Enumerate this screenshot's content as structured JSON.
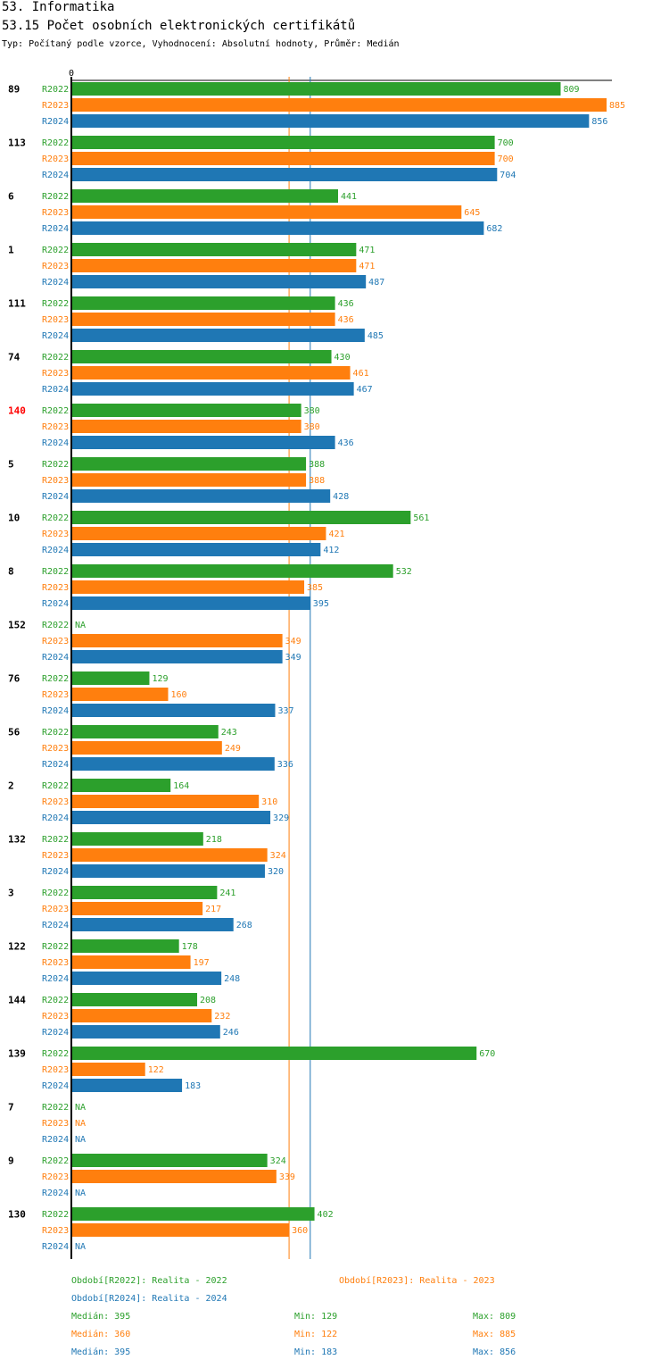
{
  "header": {
    "section_title": "53. Informatika",
    "chart_title": "53.15 Počet osobních elektronických certifikátů",
    "subtitle": "Typ: Počítaný podle vzorce, Vyhodnocení: Absolutní hodnoty, Průměr: Medián"
  },
  "colors": {
    "R2022": "#2ca02c",
    "R2023": "#ff7f0e",
    "R2024": "#1f77b4",
    "highlight": "#ff0000"
  },
  "chart_data": {
    "type": "bar",
    "orientation": "horizontal",
    "title": "53.15 Počet osobních elektronických certifikátů",
    "axis_zero_label": "0",
    "xlim": [
      0,
      885
    ],
    "na_label": "NA",
    "highlight_category": "140",
    "categories": [
      "89",
      "113",
      "6",
      "1",
      "111",
      "74",
      "140",
      "5",
      "10",
      "8",
      "152",
      "76",
      "56",
      "2",
      "132",
      "3",
      "122",
      "144",
      "139",
      "7",
      "9",
      "130"
    ],
    "series": [
      {
        "name": "R2022",
        "values": [
          809,
          700,
          441,
          471,
          436,
          430,
          380,
          388,
          561,
          532,
          null,
          129,
          243,
          164,
          218,
          241,
          178,
          208,
          670,
          null,
          324,
          402
        ]
      },
      {
        "name": "R2023",
        "values": [
          885,
          700,
          645,
          471,
          436,
          461,
          380,
          388,
          421,
          385,
          349,
          160,
          249,
          310,
          324,
          217,
          197,
          232,
          122,
          null,
          339,
          360
        ]
      },
      {
        "name": "R2024",
        "values": [
          856,
          704,
          682,
          487,
          485,
          467,
          436,
          428,
          412,
          395,
          349,
          337,
          336,
          329,
          320,
          268,
          248,
          246,
          183,
          null,
          null,
          null
        ]
      }
    ],
    "median_lines": [
      {
        "series": "R2023",
        "value": 360
      },
      {
        "series": "R2024",
        "value": 395
      }
    ]
  },
  "legend": {
    "entries": [
      {
        "series": "R2022",
        "text": "Období[R2022]: Realita - 2022"
      },
      {
        "series": "R2023",
        "text": "Období[R2023]: Realita - 2023"
      },
      {
        "series": "R2024",
        "text": "Období[R2024]: Realita - 2024"
      }
    ],
    "stats": [
      {
        "series": "R2022",
        "median": "Medián: 395",
        "min": "Min: 129",
        "max": "Max: 809"
      },
      {
        "series": "R2023",
        "median": "Medián: 360",
        "min": "Min: 122",
        "max": "Max: 885"
      },
      {
        "series": "R2024",
        "median": "Medián: 395",
        "min": "Min: 183",
        "max": "Max: 856"
      }
    ]
  }
}
